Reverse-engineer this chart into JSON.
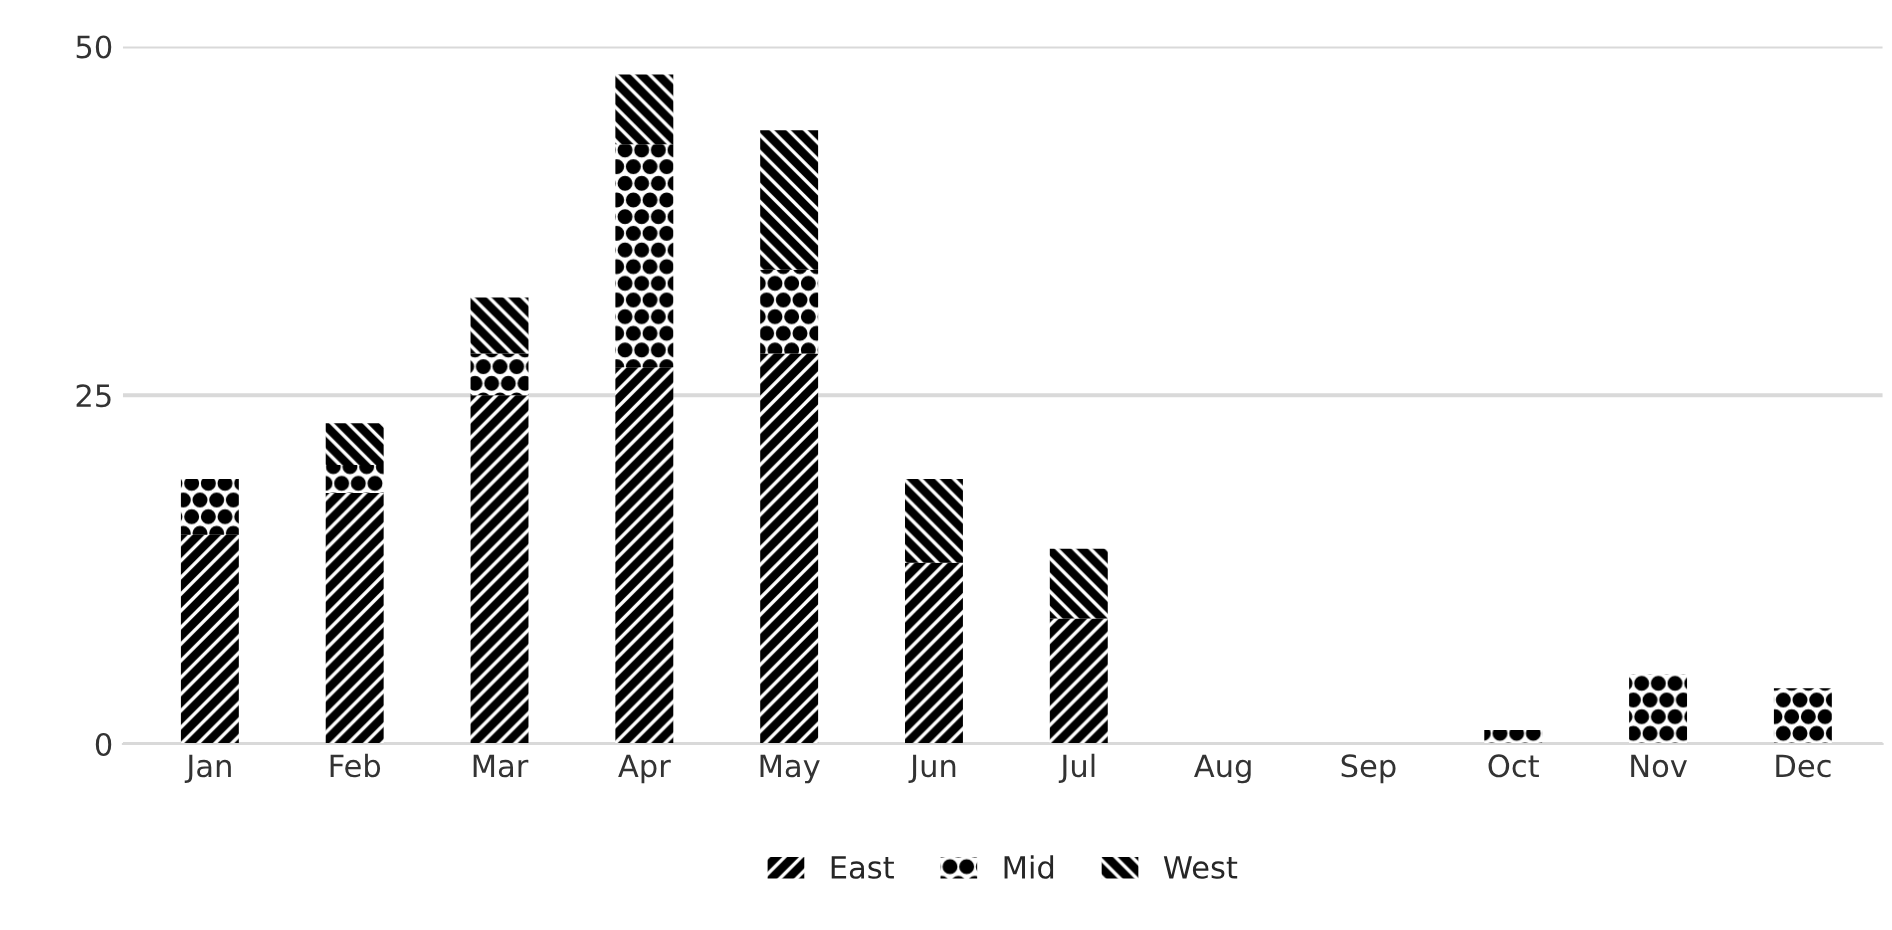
{
  "chart_data": {
    "type": "bar",
    "stacked": true,
    "categories": [
      "Jan",
      "Feb",
      "Mar",
      "Apr",
      "May",
      "Jun",
      "Jul",
      "Aug",
      "Sep",
      "Oct",
      "Nov",
      "Dec"
    ],
    "series": [
      {
        "name": "East",
        "color": "#000000",
        "values": [
          15,
          18,
          25,
          27,
          28,
          13,
          9,
          0,
          0,
          0,
          0,
          0
        ]
      },
      {
        "name": "Mid",
        "color": "#000000",
        "values": [
          4,
          2,
          3,
          16,
          6,
          0,
          0,
          0,
          0,
          1,
          5,
          4
        ]
      },
      {
        "name": "West",
        "color": "#000000",
        "values": [
          0,
          3,
          4,
          5,
          10,
          6,
          5,
          0,
          0,
          0,
          0,
          0
        ]
      }
    ],
    "ylim": [
      0,
      50
    ],
    "yticks": [
      0,
      25,
      50
    ],
    "grid": "y",
    "legend": "bottom"
  }
}
